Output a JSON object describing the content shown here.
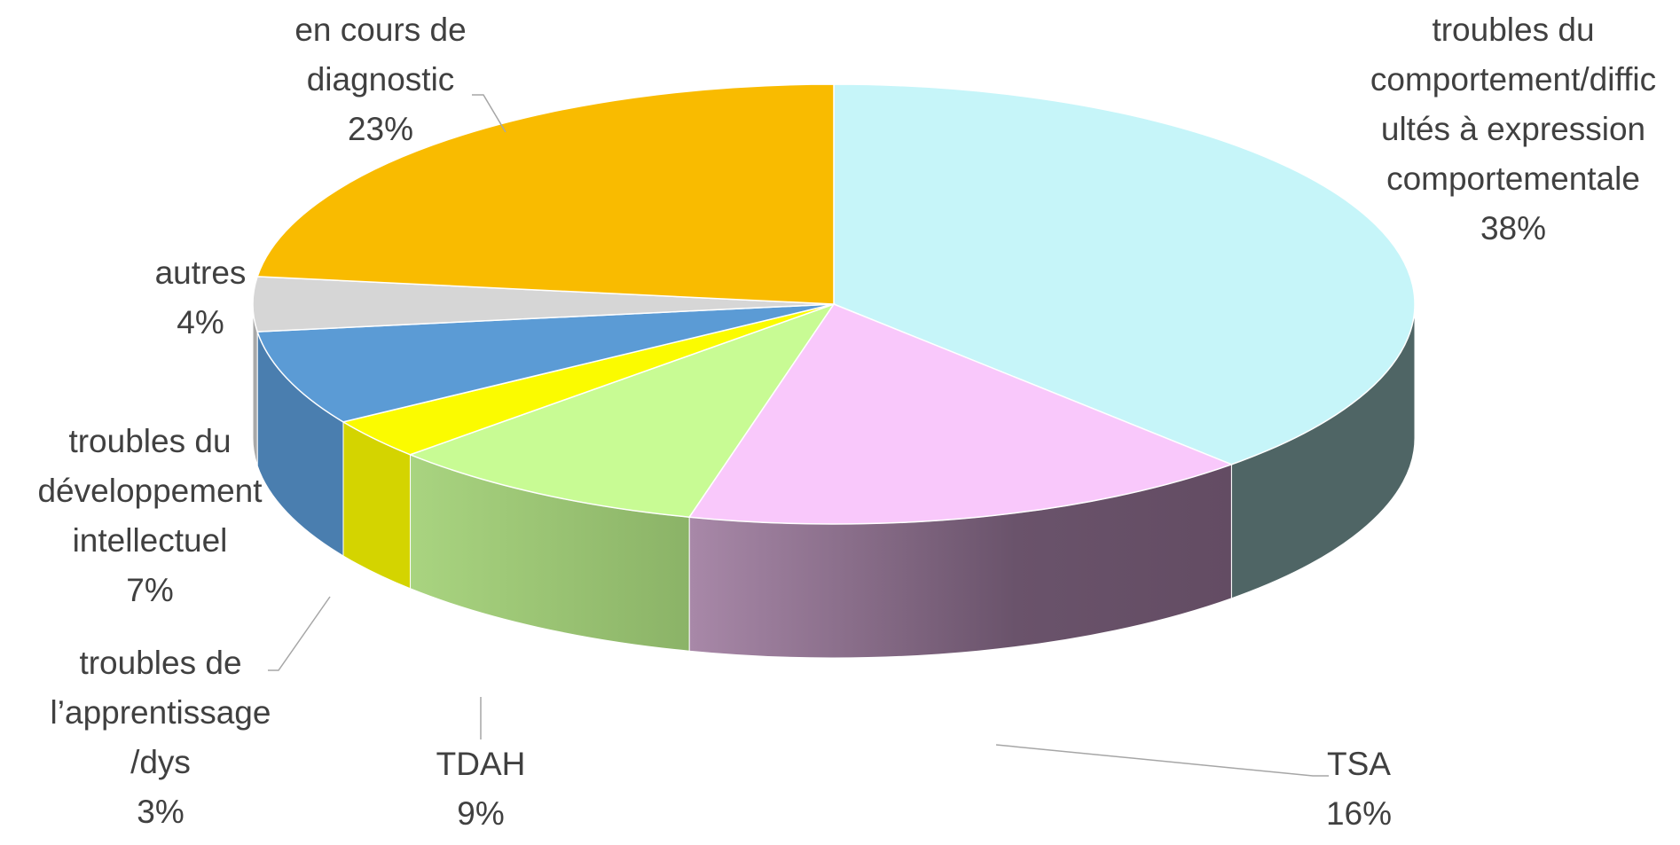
{
  "chart_data": {
    "type": "pie3d",
    "categories": [
      "troubles du comportement/difficultés à expression comportementale",
      "TSA",
      "TDAH",
      "troubles de l’apprentissage /dys",
      "troubles du développement intellectuel",
      "autres",
      "en cours de diagnostic"
    ],
    "values": [
      38,
      16,
      9,
      3,
      7,
      4,
      23
    ],
    "value_labels": [
      "38%",
      "16%",
      "9%",
      "3%",
      "7%",
      "4%",
      "23%"
    ],
    "colors": [
      "#c6f5f9",
      "#f9c8fb",
      "#c8fb94",
      "#fbfb00",
      "#5b9bd5",
      "#d6d6d6",
      "#f9bb00"
    ],
    "side_colors": [
      "#4f6565",
      "#7d6480",
      "#95bf70",
      "#d4d400",
      "#4a7eaf",
      "#a8a8a8",
      "#c49300"
    ]
  }
}
